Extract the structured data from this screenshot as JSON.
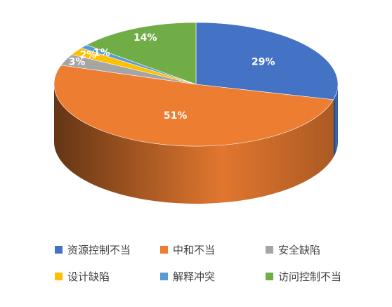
{
  "chart_data": {
    "type": "pie",
    "style": "3d",
    "title": "",
    "start_angle": "12 o'clock, clockwise",
    "legend_position": "bottom",
    "categories": [
      "资源控制不当",
      "中和不当",
      "安全缺陷",
      "设计缺陷",
      "解释冲突",
      "访问控制不当"
    ],
    "values": [
      29,
      51,
      3,
      2,
      1,
      14
    ],
    "labels": [
      "29%",
      "51%",
      "3%",
      "2%",
      "1%",
      "14%"
    ],
    "colors": [
      "#4472C4",
      "#ED7D31",
      "#A5A5A5",
      "#FFC000",
      "#5B9BD5",
      "#70AD47"
    ]
  }
}
